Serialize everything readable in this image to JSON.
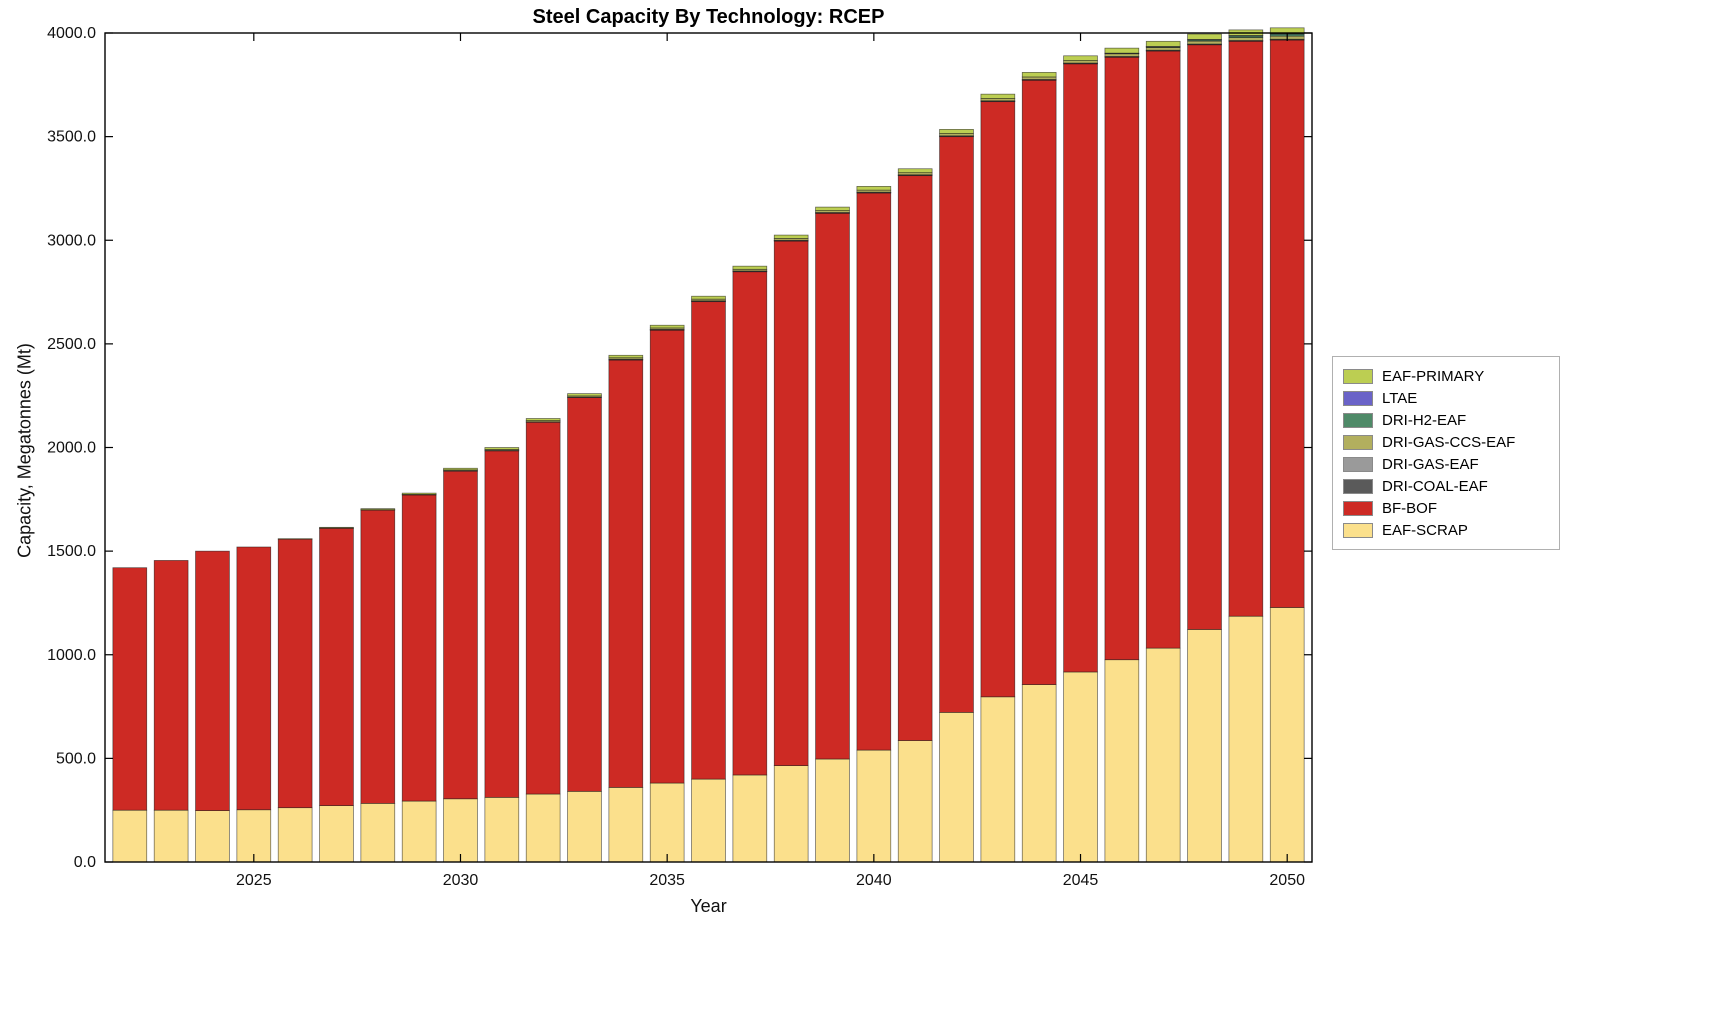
{
  "chart_data": {
    "type": "bar",
    "stacked": true,
    "title": "Steel Capacity By Technology: RCEP",
    "xlabel": "Year",
    "ylabel": "Capacity, Megatonnes (Mt)",
    "ylim": [
      0,
      4000
    ],
    "ytick_step": 500,
    "ytick_decimals": 1,
    "xticks": [
      2025,
      2030,
      2035,
      2040,
      2045,
      2050
    ],
    "grid": false,
    "legend_position": "right",
    "x": [
      2022,
      2023,
      2024,
      2025,
      2026,
      2027,
      2028,
      2029,
      2030,
      2031,
      2032,
      2033,
      2034,
      2035,
      2036,
      2037,
      2038,
      2039,
      2040,
      2041,
      2042,
      2043,
      2044,
      2045,
      2046,
      2047,
      2048,
      2049,
      2050
    ],
    "series": [
      {
        "name": "EAF-SCRAP",
        "color": "#fbe08c",
        "values": [
          250,
          250,
          248,
          252,
          262,
          272,
          283,
          294,
          305,
          312,
          328,
          341,
          360,
          381,
          400,
          420,
          465,
          497,
          540,
          586,
          722,
          797,
          856,
          917,
          976,
          1032,
          1122,
          1186,
          1228
        ]
      },
      {
        "name": "BF-BOF",
        "color": "#cd2a24",
        "values": [
          1170,
          1205,
          1252,
          1268,
          1296,
          1339,
          1415,
          1477,
          1581,
          1672,
          1794,
          1900,
          2063,
          2186,
          2305,
          2429,
          2532,
          2634,
          2689,
          2727,
          2779,
          2873,
          2917,
          2935,
          2908,
          2882,
          2822,
          2775,
          2739
        ]
      },
      {
        "name": "DRI-COAL-EAF",
        "color": "#5a5a5a",
        "values": [
          0,
          0,
          0,
          0,
          0,
          0,
          0,
          0,
          0,
          0,
          0,
          0,
          1,
          1,
          1,
          1,
          1,
          1,
          1,
          1,
          1,
          1,
          1,
          1,
          1,
          1,
          1,
          1,
          1
        ]
      },
      {
        "name": "DRI-GAS-EAF",
        "color": "#9a9a9a",
        "values": [
          0,
          0,
          0,
          0,
          0,
          0,
          0,
          0,
          2,
          2,
          2,
          2,
          2,
          2,
          2,
          2,
          2,
          2,
          2,
          2,
          2,
          2,
          2,
          2,
          2,
          2,
          2,
          2,
          2
        ]
      },
      {
        "name": "DRI-GAS-CCS-EAF",
        "color": "#b2af5e",
        "values": [
          0,
          0,
          0,
          0,
          0,
          1,
          2,
          3,
          4,
          5,
          6,
          6,
          7,
          7,
          8,
          8,
          9,
          9,
          10,
          10,
          11,
          11,
          12,
          12,
          13,
          13,
          14,
          14,
          15
        ]
      },
      {
        "name": "DRI-H2-EAF",
        "color": "#4f8a68",
        "values": [
          0,
          0,
          0,
          0,
          0,
          0,
          0,
          0,
          0,
          0,
          0,
          0,
          0,
          0,
          0,
          0,
          0,
          0,
          0,
          0,
          0,
          0,
          0,
          0,
          2,
          4,
          6,
          8,
          10
        ]
      },
      {
        "name": "LTAE",
        "color": "#6a63c8",
        "values": [
          0,
          0,
          0,
          0,
          0,
          0,
          0,
          0,
          0,
          0,
          0,
          0,
          0,
          0,
          0,
          0,
          0,
          0,
          0,
          0,
          0,
          0,
          0,
          0,
          1,
          1,
          2,
          2,
          2
        ]
      },
      {
        "name": "EAF-PRIMARY",
        "color": "#bcce52",
        "values": [
          0,
          0,
          0,
          0,
          2,
          3,
          5,
          6,
          8,
          9,
          10,
          11,
          12,
          13,
          14,
          15,
          16,
          17,
          18,
          19,
          20,
          21,
          22,
          23,
          24,
          25,
          26,
          27,
          28
        ]
      }
    ]
  }
}
